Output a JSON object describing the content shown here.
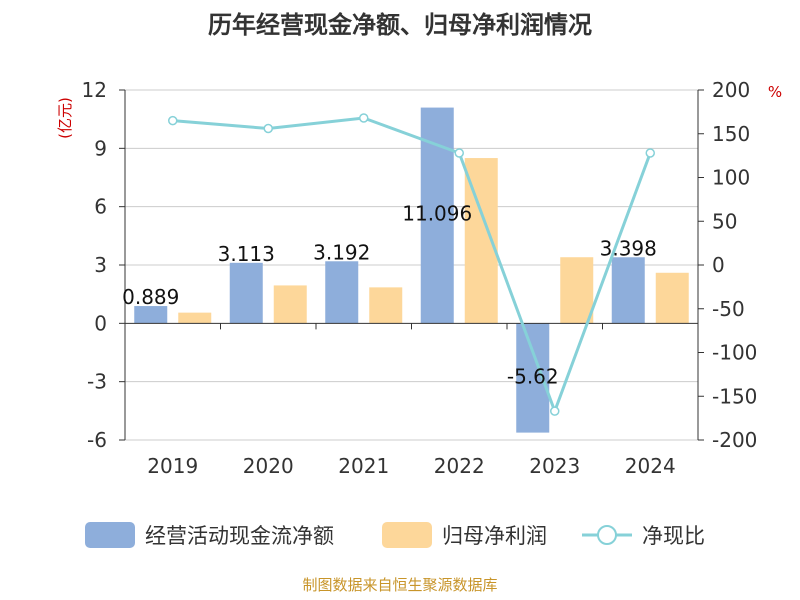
{
  "chart_data": {
    "type": "bar",
    "title": "历年经营现金净额、归母净利润情况",
    "categories": [
      "2019",
      "2020",
      "2021",
      "2022",
      "2023",
      "2024"
    ],
    "left_axis": {
      "label": "(亿元)",
      "ylim": [
        -6,
        12
      ],
      "ticks": [
        "12",
        "9",
        "6",
        "3",
        "0",
        "-3",
        "-6"
      ],
      "tick_values": [
        12,
        9,
        6,
        3,
        0,
        -3,
        -6
      ]
    },
    "right_axis": {
      "label": "%",
      "ylim": [
        -200,
        200
      ],
      "ticks": [
        "200",
        "150",
        "100",
        "50",
        "0",
        "-50",
        "-100",
        "-150",
        "-200"
      ],
      "tick_values": [
        200,
        150,
        100,
        50,
        0,
        -50,
        -100,
        -150,
        -200
      ]
    },
    "series": [
      {
        "name": "经营活动现金流净额",
        "type": "bar",
        "axis": "left",
        "color": "#8eaedb",
        "values": [
          0.889,
          3.113,
          3.192,
          11.096,
          -5.62,
          3.398
        ],
        "labels": [
          "0.889",
          "3.113",
          "3.192",
          "11.096",
          "-5.62",
          "3.398"
        ]
      },
      {
        "name": "归母净利润",
        "type": "bar",
        "axis": "left",
        "color": "#fdd79a",
        "values": [
          0.55,
          1.95,
          1.85,
          8.5,
          3.4,
          2.6
        ]
      },
      {
        "name": "净现比",
        "type": "line",
        "axis": "right",
        "color": "#86d1d8",
        "values": [
          165,
          156,
          168,
          128,
          -167,
          128
        ]
      }
    ],
    "grid": true,
    "legend_position": "bottom"
  },
  "footer": {
    "source": "制图数据来自恒生聚源数据库"
  },
  "colors": {
    "title": "#333333",
    "axis_label": "#cc0000",
    "tick": "#333333",
    "grid": "#cccccc",
    "source": "#c8952a"
  }
}
